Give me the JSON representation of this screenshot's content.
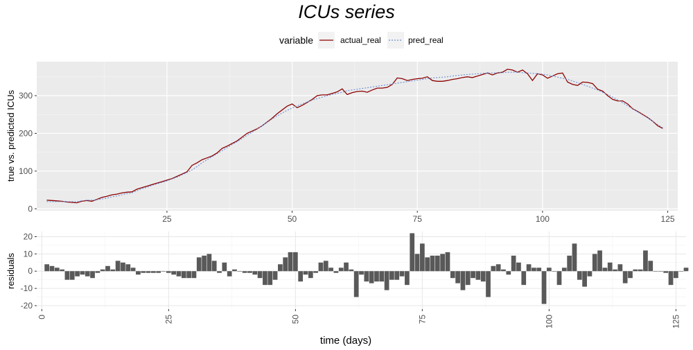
{
  "chart_data": [
    {
      "type": "line",
      "title": "ICUs series",
      "ylabel": "true vs. predicted ICUs",
      "xlabel": "",
      "xlim": [
        -1,
        127
      ],
      "ylim": [
        -5,
        390
      ],
      "x_ticks": [
        25,
        50,
        75,
        100,
        125
      ],
      "y_ticks": [
        0,
        100,
        200,
        300
      ],
      "grid": true,
      "legend": {
        "title": "variable",
        "position": "top",
        "entries": [
          {
            "label": "actual_real",
            "color": "#8B0000",
            "style": "solid"
          },
          {
            "label": "pred_real",
            "color": "#6B8ED6",
            "style": "dotted"
          }
        ]
      },
      "series": [
        {
          "name": "actual_real",
          "color": "#8B0000",
          "x_start": 1,
          "values": [
            23,
            22,
            21,
            20,
            18,
            17,
            16,
            20,
            22,
            20,
            25,
            30,
            33,
            37,
            39,
            42,
            44,
            45,
            52,
            56,
            60,
            64,
            68,
            72,
            76,
            80,
            86,
            92,
            98,
            115,
            122,
            130,
            135,
            140,
            148,
            160,
            166,
            173,
            180,
            190,
            200,
            206,
            212,
            220,
            230,
            240,
            252,
            262,
            272,
            278,
            268,
            274,
            282,
            290,
            300,
            302,
            302,
            306,
            310,
            318,
            303,
            308,
            311,
            312,
            309,
            315,
            320,
            320,
            322,
            330,
            347,
            345,
            340,
            343,
            345,
            346,
            350,
            340,
            338,
            338,
            340,
            343,
            345,
            348,
            350,
            348,
            352,
            356,
            360,
            355,
            360,
            362,
            370,
            368,
            362,
            368,
            358,
            340,
            358,
            355,
            346,
            352,
            358,
            360,
            336,
            330,
            327,
            336,
            335,
            332,
            317,
            312,
            300,
            290,
            286,
            286,
            278,
            265,
            258,
            250,
            242,
            232,
            220,
            213
          ]
        },
        {
          "name": "pred_real",
          "color": "#6B8ED6",
          "x_start": 1,
          "values": [
            19,
            19,
            19,
            19,
            19,
            19,
            19,
            21,
            23,
            23,
            24,
            26,
            28,
            32,
            34,
            37,
            40,
            42,
            48,
            53,
            57,
            62,
            66,
            70,
            74,
            79,
            84,
            90,
            96,
            103,
            112,
            122,
            130,
            138,
            146,
            154,
            162,
            170,
            178,
            186,
            195,
            203,
            211,
            220,
            229,
            238,
            246,
            254,
            261,
            267,
            273,
            278,
            283,
            288,
            292,
            296,
            300,
            303,
            306,
            309,
            313,
            315,
            317,
            319,
            321,
            323,
            325,
            327,
            329,
            331,
            333,
            335,
            337,
            339,
            341,
            343,
            345,
            347,
            348,
            349,
            350,
            352,
            353,
            355,
            356,
            357,
            358,
            359,
            360,
            360,
            361,
            361,
            362,
            362,
            362,
            361,
            360,
            359,
            358,
            357,
            355,
            352,
            349,
            346,
            343,
            339,
            334,
            330,
            325,
            320,
            315,
            309,
            303,
            296,
            289,
            281,
            273,
            265,
            257,
            249,
            241,
            232,
            223,
            215
          ]
        }
      ]
    },
    {
      "type": "bar",
      "title": "",
      "ylabel": "residuals",
      "xlabel": "time (days)",
      "xlim": [
        -1,
        127
      ],
      "ylim": [
        -22,
        23
      ],
      "x_ticks": [
        0,
        25,
        50,
        75,
        100,
        125
      ],
      "y_ticks": [
        -20,
        -10,
        0,
        10,
        20
      ],
      "grid": true,
      "color": "#595959",
      "x_start": 1,
      "values": [
        4,
        3,
        2,
        1,
        -5,
        -5,
        -3,
        -2,
        -3,
        -4,
        -1,
        1,
        3,
        1,
        6,
        5,
        4,
        2,
        -2,
        -1,
        -1,
        -1,
        -1,
        0,
        -1,
        -2,
        -3,
        -4,
        -4,
        -4,
        8,
        9,
        10,
        6,
        -1,
        5,
        -3,
        1,
        0,
        -1,
        -1,
        -2,
        -4,
        -8,
        -8,
        -5,
        4,
        8,
        11,
        11,
        -6,
        -2,
        -4,
        -1,
        5,
        6,
        2,
        -1,
        2,
        5,
        1,
        -15,
        -2,
        -6,
        -7,
        -6,
        -6,
        -11,
        -5,
        -5,
        -3,
        -8,
        22,
        10,
        16,
        8,
        9,
        9,
        10,
        11,
        -4,
        -7,
        -11,
        -8,
        -4,
        -5,
        -6,
        -15,
        3,
        4,
        1,
        -2,
        9,
        5,
        -8,
        4,
        2,
        2,
        -19,
        2,
        0,
        -8,
        2,
        9,
        16,
        -5,
        -9,
        -3,
        10,
        12,
        2,
        5,
        1,
        4,
        -7,
        -4,
        1,
        1,
        12,
        6,
        0,
        0,
        -1,
        -8,
        -4,
        0,
        2
      ]
    }
  ]
}
